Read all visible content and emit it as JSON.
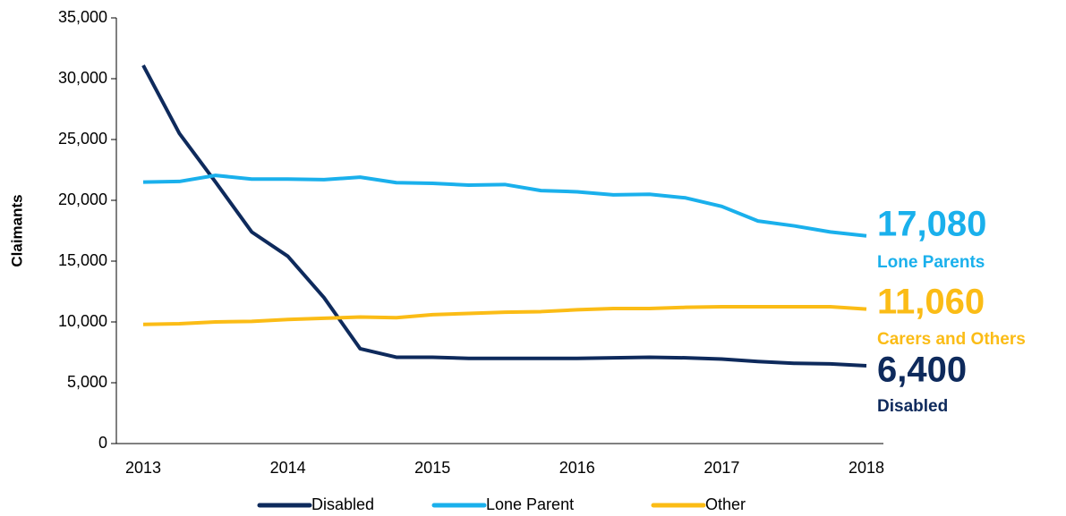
{
  "chart_data": {
    "type": "line",
    "y_label": "Claimants",
    "categories": [
      "2013",
      null,
      null,
      null,
      "2014",
      null,
      null,
      null,
      "2015",
      null,
      null,
      null,
      "2016",
      null,
      null,
      null,
      "2017",
      null,
      null,
      null,
      "2018"
    ],
    "series": [
      {
        "name": "Disabled",
        "color": "#0e2a5c",
        "values": [
          31100,
          25500,
          21500,
          17400,
          15400,
          12000,
          7800,
          7100,
          7100,
          7000,
          7000,
          7000,
          7000,
          7050,
          7100,
          7050,
          6950,
          6750,
          6600,
          6550,
          6400
        ]
      },
      {
        "name": "Lone Parent",
        "color": "#1ab0ec",
        "values": [
          21500,
          21550,
          22050,
          21750,
          21750,
          21700,
          21900,
          21450,
          21400,
          21250,
          21300,
          20800,
          20700,
          20450,
          20500,
          20200,
          19500,
          18300,
          17900,
          17400,
          17080
        ]
      },
      {
        "name": "Other",
        "color": "#fbbc16",
        "values": [
          9800,
          9850,
          10000,
          10050,
          10200,
          10300,
          10400,
          10350,
          10600,
          10700,
          10800,
          10850,
          11000,
          11100,
          11100,
          11200,
          11250,
          11250,
          11250,
          11250,
          11060
        ]
      }
    ],
    "ylim": [
      0,
      35000
    ],
    "yticks": [
      0,
      {
        "value": 5000,
        "label": "5,000"
      },
      {
        "value": 10000,
        "label": "10,000"
      },
      {
        "value": 15000,
        "label": "15,000"
      },
      {
        "value": 20000,
        "label": "20,000"
      },
      {
        "value": 25000,
        "label": "25,000"
      },
      {
        "value": 30000,
        "label": "30,000"
      },
      {
        "value": 35000,
        "label": "35,000"
      }
    ],
    "annotations": [
      {
        "value": "17,080",
        "text": "Lone Parents",
        "color": "#1ab0ec"
      },
      {
        "value": "11,060",
        "text": "Carers and Others",
        "color": "#fbbc16"
      },
      {
        "value": "6,400",
        "text": "Disabled",
        "color": "#0e2a5c"
      }
    ],
    "legend": "bottom"
  }
}
